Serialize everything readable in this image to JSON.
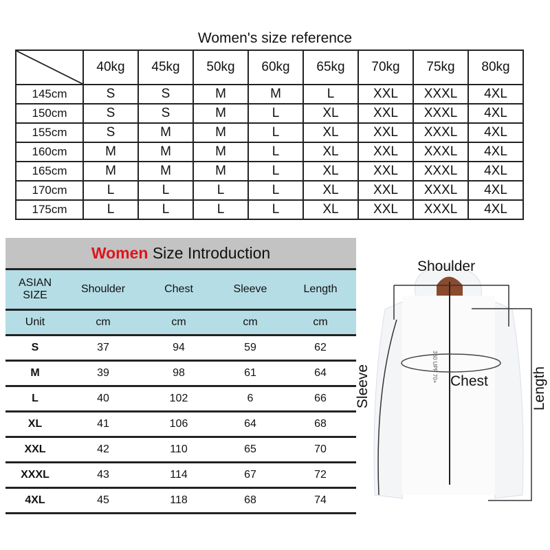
{
  "reference": {
    "title": "Women's size reference",
    "weights": [
      "40kg",
      "45kg",
      "50kg",
      "60kg",
      "65kg",
      "70kg",
      "75kg",
      "80kg"
    ],
    "rows": [
      {
        "height": "145cm",
        "sizes": [
          "S",
          "S",
          "M",
          "M",
          "L",
          "XXL",
          "XXXL",
          "4XL"
        ]
      },
      {
        "height": "150cm",
        "sizes": [
          "S",
          "S",
          "M",
          "L",
          "XL",
          "XXL",
          "XXXL",
          "4XL"
        ]
      },
      {
        "height": "155cm",
        "sizes": [
          "S",
          "M",
          "M",
          "L",
          "XL",
          "XXL",
          "XXXL",
          "4XL"
        ]
      },
      {
        "height": "160cm",
        "sizes": [
          "M",
          "M",
          "M",
          "L",
          "XL",
          "XXL",
          "XXXL",
          "4XL"
        ]
      },
      {
        "height": "165cm",
        "sizes": [
          "M",
          "M",
          "M",
          "L",
          "XL",
          "XXL",
          "XXXL",
          "4XL"
        ]
      },
      {
        "height": "170cm",
        "sizes": [
          "L",
          "L",
          "L",
          "L",
          "XL",
          "XXL",
          "XXXL",
          "4XL"
        ]
      },
      {
        "height": "175cm",
        "sizes": [
          "L",
          "L",
          "L",
          "L",
          "XL",
          "XXL",
          "XXXL",
          "4XL"
        ]
      }
    ]
  },
  "introduction": {
    "title_highlight": "Women",
    "title_rest": " Size Introduction",
    "highlight_color": "#e0141a",
    "header_bg": "#b5dde6",
    "headers": [
      "ASIAN SIZE",
      "Shoulder",
      "Chest",
      "Sleeve",
      "Length"
    ],
    "units": [
      "Unit",
      "cm",
      "cm",
      "cm",
      "cm"
    ],
    "rows": [
      [
        "S",
        "37",
        "94",
        "59",
        "62"
      ],
      [
        "M",
        "39",
        "98",
        "61",
        "64"
      ],
      [
        "L",
        "40",
        "102",
        "6",
        "66"
      ],
      [
        "XL",
        "41",
        "106",
        "64",
        "68"
      ],
      [
        "XXL",
        "42",
        "110",
        "65",
        "70"
      ],
      [
        "XXXL",
        "43",
        "114",
        "67",
        "72"
      ],
      [
        "4XL",
        "45",
        "118",
        "68",
        "74"
      ]
    ]
  },
  "diagram": {
    "shoulder": "Shoulder",
    "chest": "Chest",
    "sleeve": "Sleeve",
    "length": "Length",
    "print_text": "360 UPF 70+"
  }
}
